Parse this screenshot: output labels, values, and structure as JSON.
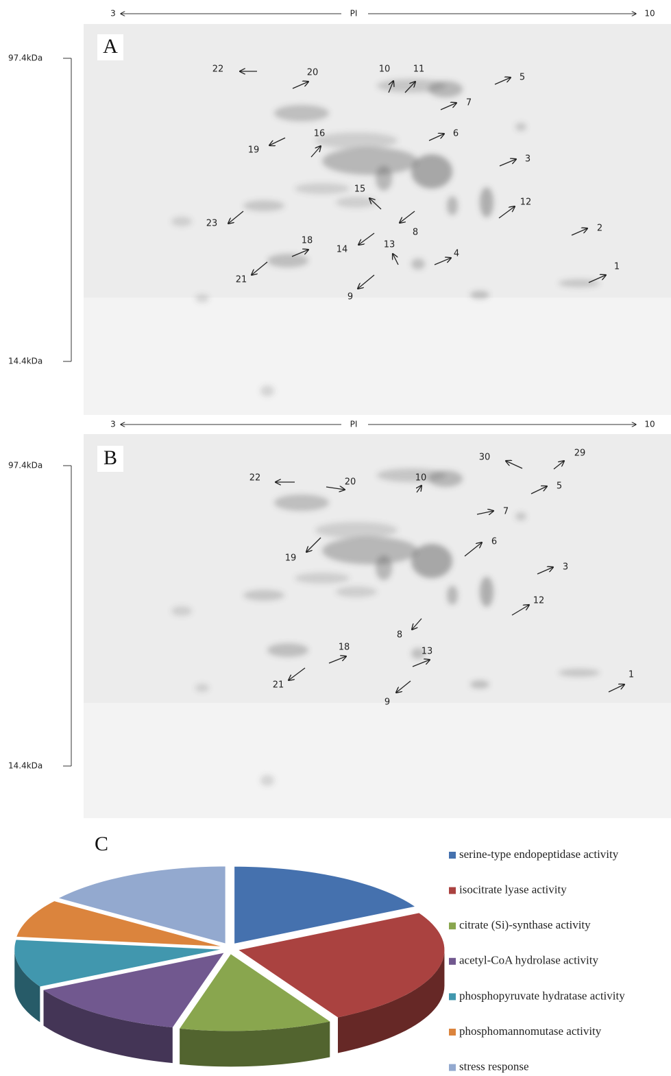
{
  "panels": [
    {
      "label": "A",
      "pi_axis": {
        "left": "3",
        "title": "PI",
        "right": "10"
      },
      "mw_axis": {
        "top": "97.4kDa",
        "bottom": "14.4kDa"
      },
      "spots": [
        "22",
        "20",
        "10",
        "11",
        "5",
        "7",
        "6",
        "16",
        "19",
        "3",
        "15",
        "12",
        "23",
        "8",
        "2",
        "18",
        "14",
        "13",
        "4",
        "21",
        "1",
        "9"
      ]
    },
    {
      "label": "B",
      "pi_axis": {
        "left": "3",
        "title": "PI",
        "right": "10"
      },
      "mw_axis": {
        "top": "97.4kDa",
        "bottom": "14.4kDa"
      },
      "spots": [
        "30",
        "29",
        "22",
        "20",
        "10",
        "5",
        "7",
        "6",
        "19",
        "3",
        "12",
        "8",
        "18",
        "13",
        "21",
        "1",
        "9"
      ]
    }
  ],
  "chart_data": {
    "type": "pie",
    "panel_label": "C",
    "categories": [
      "serine-type endopeptidase activity",
      "isocitrate lyase activity",
      "citrate (Si)-synthase activity",
      "acetyl-CoA hydrolase activity",
      "phosphopyruvate hydratase activity",
      "phosphomannomutase activity",
      "stress response"
    ],
    "values": [
      17,
      25,
      12,
      13,
      10,
      8,
      15
    ],
    "colors": [
      "#4571ae",
      "#aa4240",
      "#89a64e",
      "#71588f",
      "#4197ae",
      "#db843d",
      "#93a9cf"
    ]
  }
}
